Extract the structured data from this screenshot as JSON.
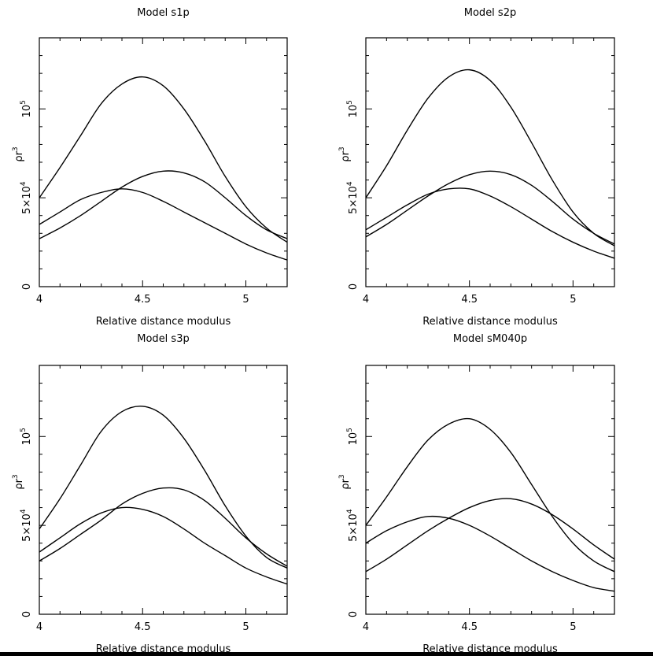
{
  "chart_data": [
    {
      "type": "line",
      "title": "Model s1p",
      "xlabel": "Relative distance modulus",
      "ylabel_base": "ρr",
      "ylabel_exp": "3",
      "xlim": [
        4,
        5.2
      ],
      "ylim": [
        0,
        140000
      ],
      "x_ticks": [
        {
          "v": 4,
          "label": "4"
        },
        {
          "v": 4.5,
          "label": "4.5"
        },
        {
          "v": 5,
          "label": "5"
        }
      ],
      "y_ticks": [
        {
          "v": 0,
          "label": "0"
        },
        {
          "v": 50000,
          "label": "5×10",
          "sup": "4"
        },
        {
          "v": 100000,
          "label": "10",
          "sup": "5"
        }
      ],
      "series": [
        {
          "name": "curve-1",
          "x": [
            4,
            4.1,
            4.2,
            4.3,
            4.4,
            4.5,
            4.6,
            4.7,
            4.8,
            4.9,
            5.0,
            5.1,
            5.2
          ],
          "values": [
            50000,
            67000,
            85000,
            103000,
            114000,
            118000,
            113000,
            100000,
            82000,
            62000,
            45000,
            33000,
            25000
          ]
        },
        {
          "name": "curve-2",
          "x": [
            4,
            4.1,
            4.2,
            4.3,
            4.4,
            4.5,
            4.6,
            4.7,
            4.8,
            4.9,
            5.0,
            5.1,
            5.2
          ],
          "values": [
            27000,
            33000,
            40000,
            48000,
            56000,
            62000,
            65000,
            64000,
            59000,
            50000,
            40000,
            32000,
            27000
          ]
        },
        {
          "name": "curve-3",
          "x": [
            4,
            4.1,
            4.2,
            4.3,
            4.4,
            4.5,
            4.6,
            4.7,
            4.8,
            4.9,
            5.0,
            5.1,
            5.2
          ],
          "values": [
            35000,
            42000,
            49000,
            53000,
            55000,
            53000,
            48000,
            42000,
            36000,
            30000,
            24000,
            19000,
            15000
          ]
        }
      ]
    },
    {
      "type": "line",
      "title": "Model s2p",
      "xlabel": "Relative distance modulus",
      "ylabel_base": "ρr",
      "ylabel_exp": "3",
      "xlim": [
        4,
        5.2
      ],
      "ylim": [
        0,
        140000
      ],
      "x_ticks": [
        {
          "v": 4,
          "label": "4"
        },
        {
          "v": 4.5,
          "label": "4.5"
        },
        {
          "v": 5,
          "label": "5"
        }
      ],
      "y_ticks": [
        {
          "v": 0,
          "label": "0"
        },
        {
          "v": 50000,
          "label": "5×10",
          "sup": "4"
        },
        {
          "v": 100000,
          "label": "10",
          "sup": "5"
        }
      ],
      "series": [
        {
          "name": "curve-1",
          "x": [
            4,
            4.1,
            4.2,
            4.3,
            4.4,
            4.5,
            4.6,
            4.7,
            4.8,
            4.9,
            5.0,
            5.1,
            5.2
          ],
          "values": [
            50000,
            68000,
            88000,
            106000,
            118000,
            122000,
            116000,
            101000,
            81000,
            60000,
            42000,
            30000,
            23000
          ]
        },
        {
          "name": "curve-2",
          "x": [
            4,
            4.1,
            4.2,
            4.3,
            4.4,
            4.5,
            4.6,
            4.7,
            4.8,
            4.9,
            5.0,
            5.1,
            5.2
          ],
          "values": [
            28000,
            35000,
            43000,
            51000,
            58000,
            63000,
            65000,
            63000,
            57000,
            48000,
            38000,
            30000,
            24000
          ]
        },
        {
          "name": "curve-3",
          "x": [
            4,
            4.1,
            4.2,
            4.3,
            4.4,
            4.5,
            4.6,
            4.7,
            4.8,
            4.9,
            5.0,
            5.1,
            5.2
          ],
          "values": [
            32000,
            39000,
            46000,
            52000,
            55000,
            55000,
            51000,
            45000,
            38000,
            31000,
            25000,
            20000,
            16000
          ]
        }
      ]
    },
    {
      "type": "line",
      "title": "Model s3p",
      "xlabel": "Relative distance modulus",
      "ylabel_base": "ρr",
      "ylabel_exp": "3",
      "xlim": [
        4,
        5.2
      ],
      "ylim": [
        0,
        140000
      ],
      "x_ticks": [
        {
          "v": 4,
          "label": "4"
        },
        {
          "v": 4.5,
          "label": "4.5"
        },
        {
          "v": 5,
          "label": "5"
        }
      ],
      "y_ticks": [
        {
          "v": 0,
          "label": "0"
        },
        {
          "v": 50000,
          "label": "5×10",
          "sup": "4"
        },
        {
          "v": 100000,
          "label": "10",
          "sup": "5"
        }
      ],
      "series": [
        {
          "name": "curve-1",
          "x": [
            4,
            4.1,
            4.2,
            4.3,
            4.4,
            4.5,
            4.6,
            4.7,
            4.8,
            4.9,
            5.0,
            5.1,
            5.2
          ],
          "values": [
            48000,
            65000,
            84000,
            103000,
            114000,
            117000,
            112000,
            99000,
            81000,
            61000,
            44000,
            32000,
            26000
          ]
        },
        {
          "name": "curve-2",
          "x": [
            4,
            4.1,
            4.2,
            4.3,
            4.4,
            4.5,
            4.6,
            4.7,
            4.8,
            4.9,
            5.0,
            5.1,
            5.2
          ],
          "values": [
            30000,
            37000,
            45000,
            53000,
            62000,
            68000,
            71000,
            70000,
            64000,
            54000,
            43000,
            34000,
            27000
          ]
        },
        {
          "name": "curve-3",
          "x": [
            4,
            4.1,
            4.2,
            4.3,
            4.4,
            4.5,
            4.6,
            4.7,
            4.8,
            4.9,
            5.0,
            5.1,
            5.2
          ],
          "values": [
            35000,
            43000,
            51000,
            57000,
            60000,
            59000,
            55000,
            48000,
            40000,
            33000,
            26000,
            21000,
            17000
          ]
        }
      ]
    },
    {
      "type": "line",
      "title": "Model sM040p",
      "xlabel": "Relative distance modulus",
      "ylabel_base": "ρr",
      "ylabel_exp": "3",
      "xlim": [
        4,
        5.2
      ],
      "ylim": [
        0,
        140000
      ],
      "x_ticks": [
        {
          "v": 4,
          "label": "4"
        },
        {
          "v": 4.5,
          "label": "4.5"
        },
        {
          "v": 5,
          "label": "5"
        }
      ],
      "y_ticks": [
        {
          "v": 0,
          "label": "0"
        },
        {
          "v": 50000,
          "label": "5×10",
          "sup": "4"
        },
        {
          "v": 100000,
          "label": "10",
          "sup": "5"
        }
      ],
      "series": [
        {
          "name": "curve-1",
          "x": [
            4,
            4.1,
            4.2,
            4.3,
            4.4,
            4.5,
            4.6,
            4.7,
            4.8,
            4.9,
            5.0,
            5.1,
            5.2
          ],
          "values": [
            50000,
            66000,
            83000,
            98000,
            107000,
            110000,
            104000,
            91000,
            73000,
            55000,
            40000,
            30000,
            24000
          ]
        },
        {
          "name": "curve-2",
          "x": [
            4,
            4.1,
            4.2,
            4.3,
            4.4,
            4.5,
            4.6,
            4.7,
            4.8,
            4.9,
            5.0,
            5.1,
            5.2
          ],
          "values": [
            24000,
            31000,
            39000,
            47000,
            54000,
            60000,
            64000,
            65000,
            62000,
            56000,
            48000,
            39000,
            31000
          ]
        },
        {
          "name": "curve-3",
          "x": [
            4,
            4.1,
            4.2,
            4.3,
            4.4,
            4.5,
            4.6,
            4.7,
            4.8,
            4.9,
            5.0,
            5.1,
            5.2
          ],
          "values": [
            40000,
            47000,
            52000,
            55000,
            54000,
            50000,
            44000,
            37000,
            30000,
            24000,
            19000,
            15000,
            13000
          ]
        }
      ]
    }
  ]
}
